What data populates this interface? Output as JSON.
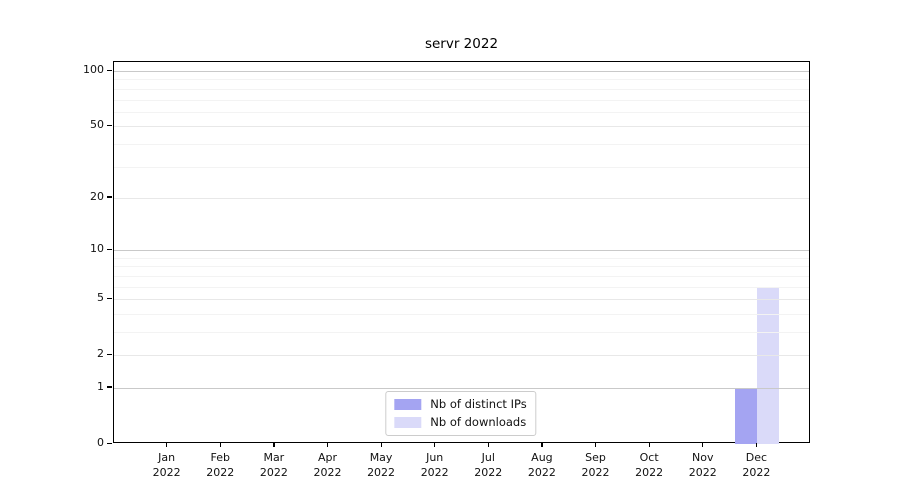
{
  "chart_data": {
    "type": "bar",
    "title": "servr 2022",
    "categories": [
      {
        "month": "Jan",
        "year": "2022"
      },
      {
        "month": "Feb",
        "year": "2022"
      },
      {
        "month": "Mar",
        "year": "2022"
      },
      {
        "month": "Apr",
        "year": "2022"
      },
      {
        "month": "May",
        "year": "2022"
      },
      {
        "month": "Jun",
        "year": "2022"
      },
      {
        "month": "Jul",
        "year": "2022"
      },
      {
        "month": "Aug",
        "year": "2022"
      },
      {
        "month": "Sep",
        "year": "2022"
      },
      {
        "month": "Oct",
        "year": "2022"
      },
      {
        "month": "Nov",
        "year": "2022"
      },
      {
        "month": "Dec",
        "year": "2022"
      }
    ],
    "series": [
      {
        "name": "Nb of distinct IPs",
        "color": "#a4a4f2",
        "values": [
          0,
          0,
          0,
          0,
          0,
          0,
          0,
          0,
          0,
          0,
          0,
          1
        ]
      },
      {
        "name": "Nb of downloads",
        "color": "#dadaf9",
        "values": [
          0,
          0,
          0,
          0,
          0,
          0,
          0,
          0,
          0,
          0,
          0,
          6
        ]
      }
    ],
    "xlabel": "",
    "ylabel": "",
    "scale": "log1p",
    "ylim": [
      0,
      112
    ],
    "yticks": [
      0,
      1,
      2,
      5,
      10,
      20,
      50,
      100
    ],
    "ytick_labels": [
      "0",
      "1",
      "2",
      "5",
      "10",
      "20",
      "50",
      "100"
    ],
    "decade_ticks": [
      1,
      10,
      100
    ],
    "minor_yticks": [
      3,
      4,
      6,
      7,
      8,
      9,
      30,
      40,
      60,
      70,
      80,
      90
    ],
    "grid": "horizontal",
    "legend_position": "lower center"
  },
  "colors": {
    "grid_decade": "#c9c9c9",
    "grid_major": "#e8e8e8",
    "grid_minor": "#f3f3f3",
    "spine": "#000000",
    "background": "#ffffff"
  }
}
